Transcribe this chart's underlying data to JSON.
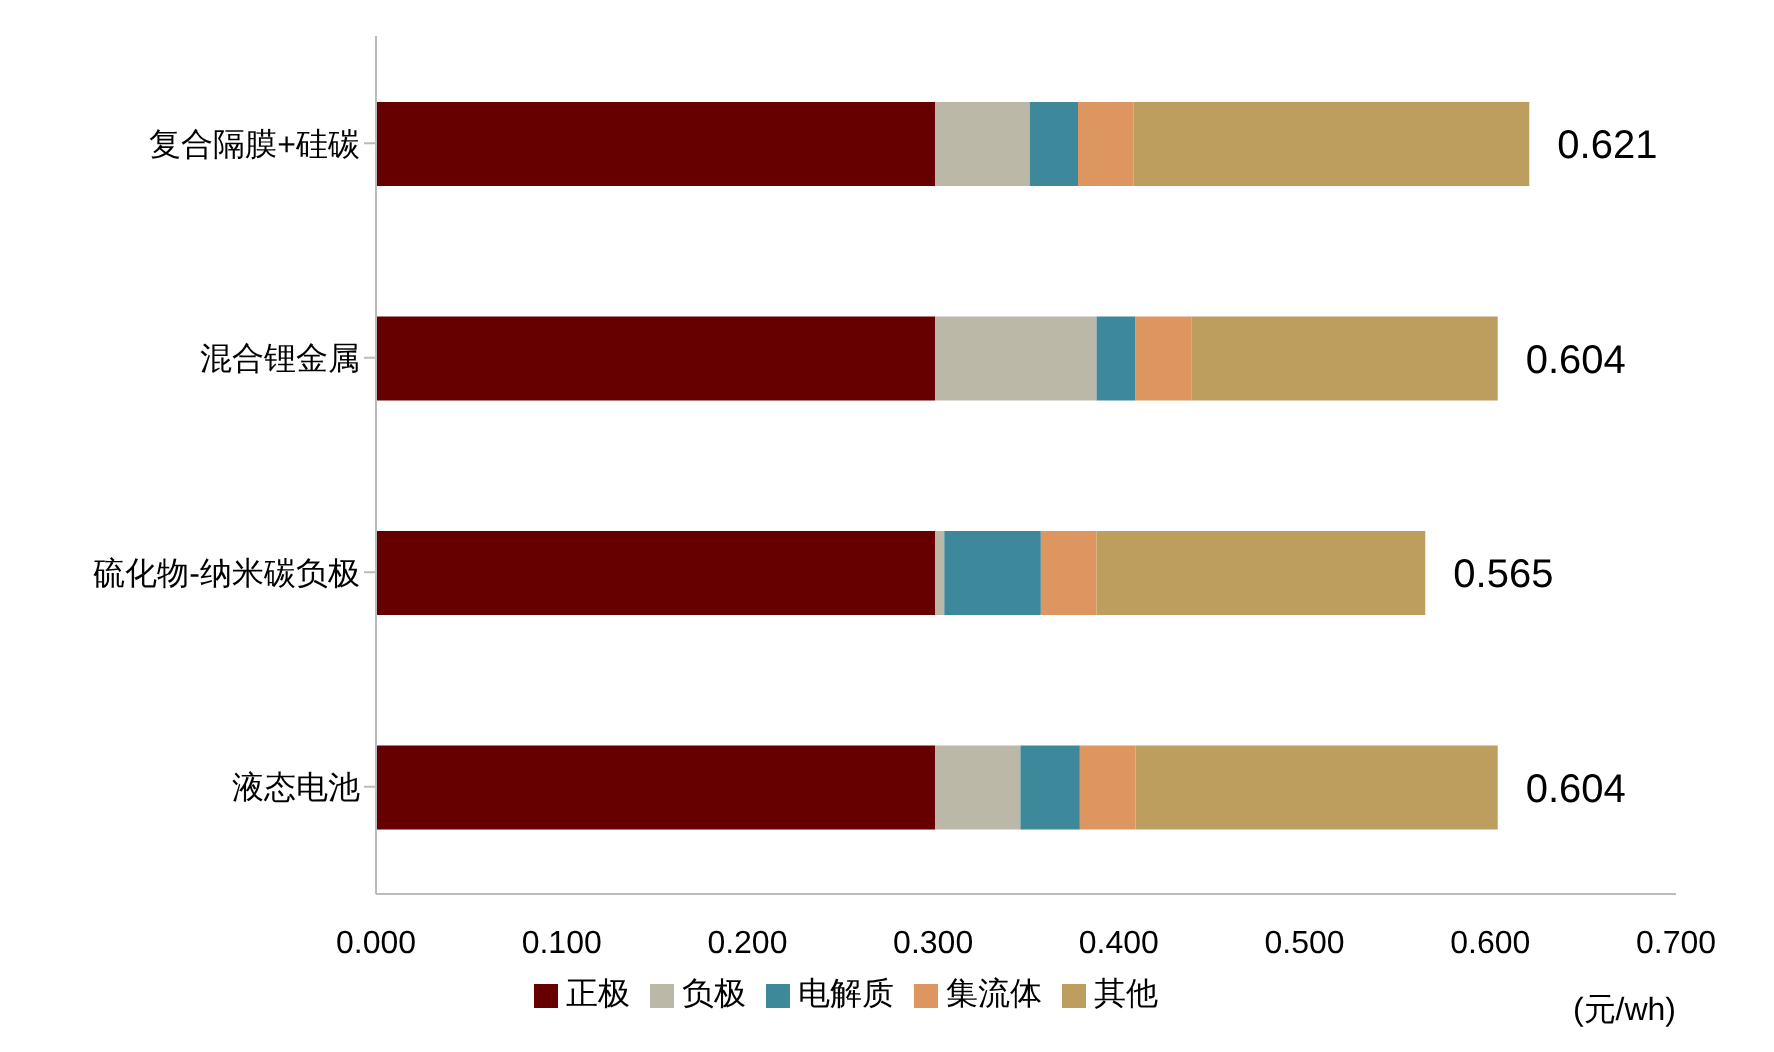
{
  "chart_data": {
    "type": "bar",
    "orientation": "horizontal",
    "stacked": true,
    "categories": [
      "复合隔膜+硅碳",
      "混合锂金属",
      "硫化物-纳米碳负极",
      "液态电池"
    ],
    "series": [
      {
        "name": "正极",
        "color": "#660000",
        "values": [
          0.301,
          0.301,
          0.301,
          0.301
        ]
      },
      {
        "name": "负极",
        "color": "#bbb8a8",
        "values": [
          0.051,
          0.087,
          0.005,
          0.046
        ]
      },
      {
        "name": "电解质",
        "color": "#3e889c",
        "values": [
          0.026,
          0.021,
          0.052,
          0.032
        ]
      },
      {
        "name": "集流体",
        "color": "#de9660",
        "values": [
          0.03,
          0.03,
          0.03,
          0.03
        ]
      },
      {
        "name": "其他",
        "color": "#bd9e5e",
        "values": [
          0.213,
          0.165,
          0.177,
          0.195
        ]
      }
    ],
    "totals": [
      "0.621",
      "0.604",
      "0.565",
      "0.604"
    ],
    "xlim": [
      0,
      0.7
    ],
    "xticks": [
      {
        "value": 0,
        "label": "0.000"
      },
      {
        "value": 0.1,
        "label": "0.100"
      },
      {
        "value": 0.2,
        "label": "0.200"
      },
      {
        "value": 0.3,
        "label": "0.300"
      },
      {
        "value": 0.4,
        "label": "0.400"
      },
      {
        "value": 0.5,
        "label": "0.500"
      },
      {
        "value": 0.6,
        "label": "0.600"
      },
      {
        "value": 0.7,
        "label": "0.700"
      }
    ],
    "xlabel": "(元/wh)",
    "legend": "bottom",
    "grid": false
  }
}
